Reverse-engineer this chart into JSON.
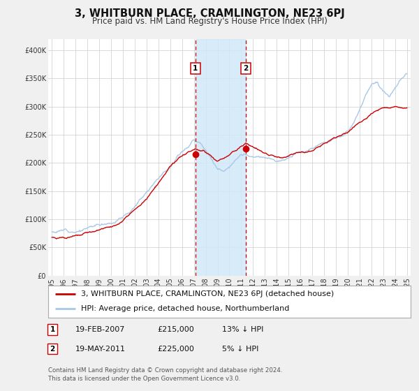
{
  "title": "3, WHITBURN PLACE, CRAMLINGTON, NE23 6PJ",
  "subtitle": "Price paid vs. HM Land Registry's House Price Index (HPI)",
  "ylim": [
    0,
    420000
  ],
  "xlim_start": 1994.7,
  "xlim_end": 2025.3,
  "yticks": [
    0,
    50000,
    100000,
    150000,
    200000,
    250000,
    300000,
    350000,
    400000
  ],
  "ytick_labels": [
    "£0",
    "£50K",
    "£100K",
    "£150K",
    "£200K",
    "£250K",
    "£300K",
    "£350K",
    "£400K"
  ],
  "xticks": [
    1995,
    1996,
    1997,
    1998,
    1999,
    2000,
    2001,
    2002,
    2003,
    2004,
    2005,
    2006,
    2007,
    2008,
    2009,
    2010,
    2011,
    2012,
    2013,
    2014,
    2015,
    2016,
    2017,
    2018,
    2019,
    2020,
    2021,
    2022,
    2023,
    2024,
    2025
  ],
  "hpi_color": "#a8c8e8",
  "price_color": "#cc0000",
  "point1_x": 2007.13,
  "point1_y": 215000,
  "point2_x": 2011.38,
  "point2_y": 225000,
  "vline1_x": 2007.13,
  "vline2_x": 2011.38,
  "shade_color": "#d0e8f8",
  "legend_price_label": "3, WHITBURN PLACE, CRAMLINGTON, NE23 6PJ (detached house)",
  "legend_hpi_label": "HPI: Average price, detached house, Northumberland",
  "table_row1": [
    "1",
    "19-FEB-2007",
    "£215,000",
    "13% ↓ HPI"
  ],
  "table_row2": [
    "2",
    "19-MAY-2011",
    "£225,000",
    "5% ↓ HPI"
  ],
  "footnote": "Contains HM Land Registry data © Crown copyright and database right 2024.\nThis data is licensed under the Open Government Licence v3.0.",
  "bg_color": "#f0f0f0",
  "plot_bg_color": "#ffffff",
  "grid_color": "#cccccc",
  "title_fontsize": 10.5,
  "subtitle_fontsize": 8.5,
  "tick_fontsize": 7,
  "legend_fontsize": 8
}
